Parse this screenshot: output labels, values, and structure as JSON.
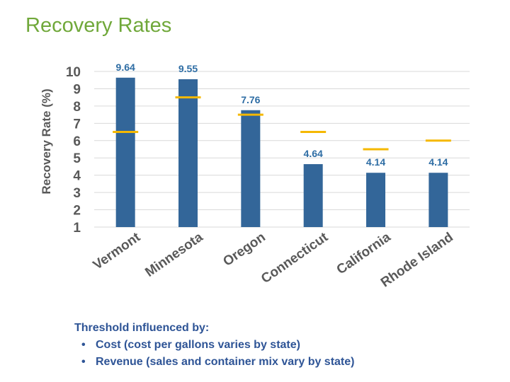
{
  "page": {
    "title": "Recovery Rates"
  },
  "colors": {
    "bar": "#336699",
    "threshold": "#f5b800",
    "title": "#70a83a",
    "grid": "#d9d9d9",
    "axis_text": "#595959",
    "value_label": "#2e6da4",
    "notes": "#2e5496"
  },
  "chart_data": {
    "type": "bar",
    "title": "",
    "xlabel": "",
    "ylabel": "Recovery Rate (%)",
    "ylim": [
      1,
      10
    ],
    "yticks": [
      1,
      2,
      3,
      4,
      5,
      6,
      7,
      8,
      9,
      10
    ],
    "grid": true,
    "categories": [
      "Vermont",
      "Minnesota",
      "Oregon",
      "Connecticut",
      "California",
      "Rhode Island"
    ],
    "values": [
      9.64,
      9.55,
      7.76,
      4.64,
      4.14,
      4.14
    ],
    "value_labels": [
      "9.64",
      "9.55",
      "7.76",
      "4.64",
      "4.14",
      "4.14"
    ],
    "thresholds": [
      6.5,
      8.5,
      7.5,
      6.5,
      5.5,
      6.0
    ]
  },
  "notes": {
    "heading": "Threshold influenced by:",
    "bullets": [
      "Cost (cost per gallons varies by state)",
      "Revenue (sales and container mix vary by state)"
    ]
  }
}
